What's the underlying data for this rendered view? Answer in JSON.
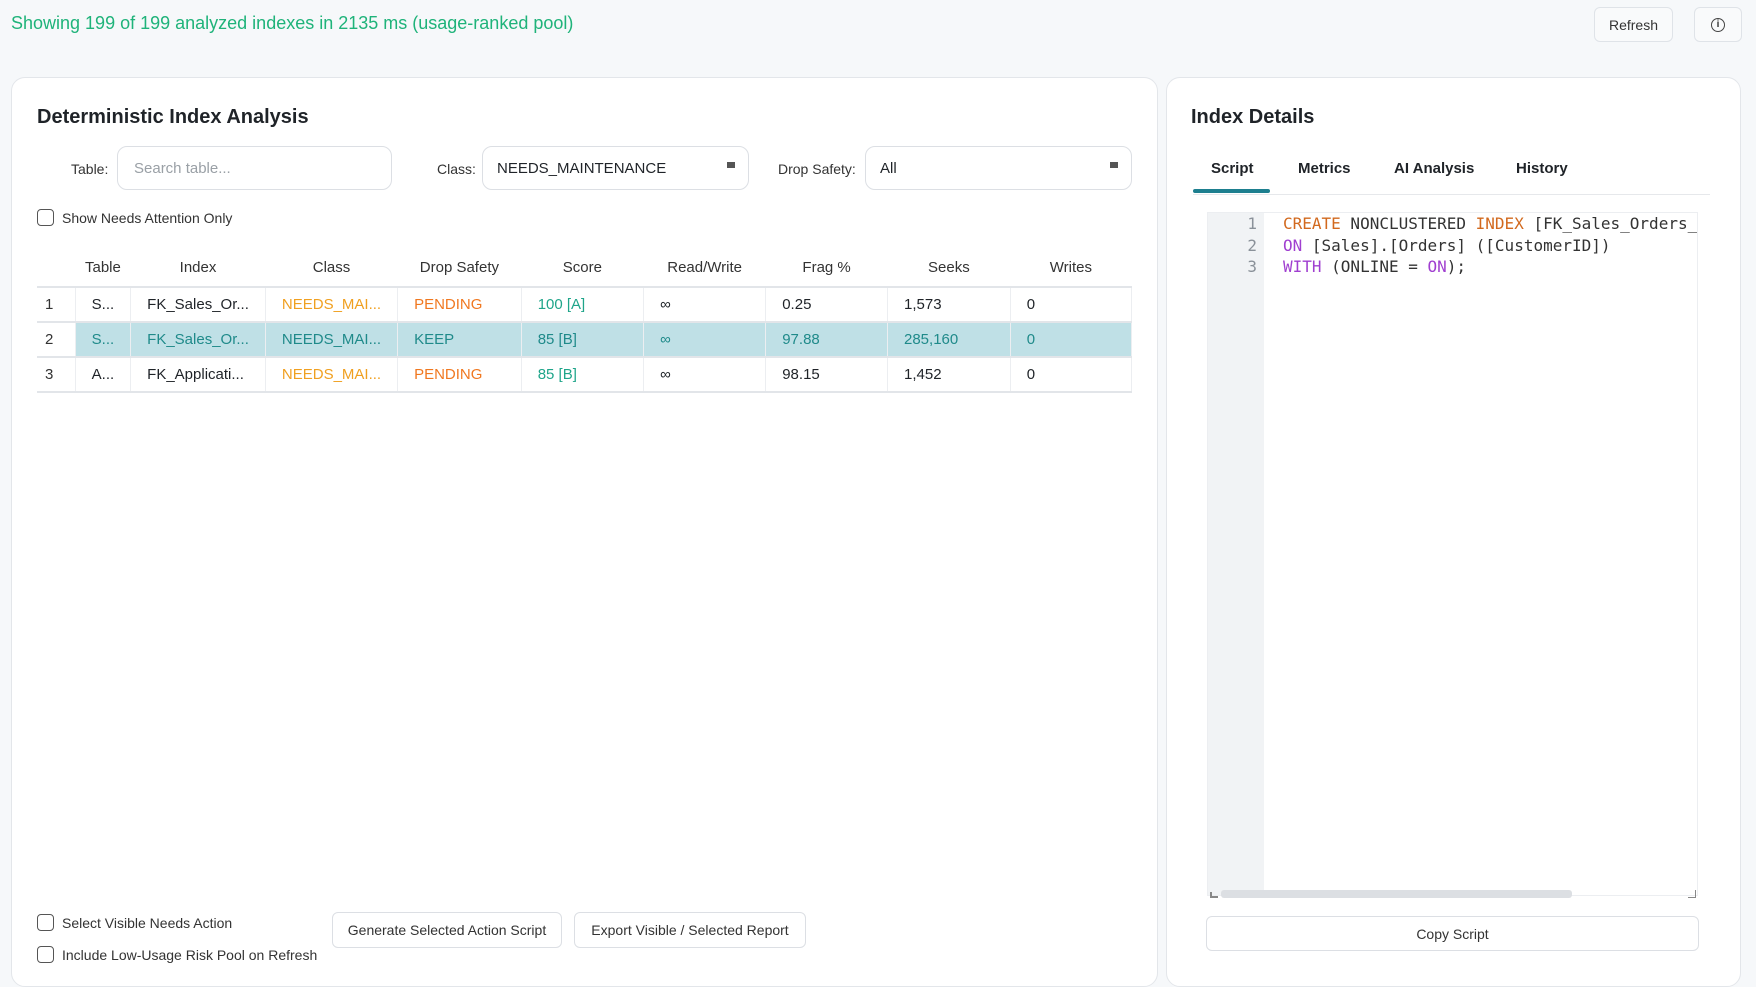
{
  "header": {
    "status": "Showing 199 of 199 analyzed indexes in 2135 ms (usage-ranked pool)",
    "refresh_label": "Refresh"
  },
  "left_panel": {
    "title": "Deterministic Index Analysis",
    "filters": {
      "table_label": "Table:",
      "table_placeholder": "Search table...",
      "class_label": "Class:",
      "class_value": "NEEDS_MAINTENANCE",
      "drop_safety_label": "Drop Safety:",
      "drop_safety_value": "All"
    },
    "show_needs_attention": "Show Needs Attention Only",
    "columns": [
      "Table",
      "Index",
      "Class",
      "Drop Safety",
      "Score",
      "Read/Write",
      "Frag %",
      "Seeks",
      "Writes"
    ],
    "rows": [
      {
        "num": "1",
        "table": "S...",
        "index": "FK_Sales_Or...",
        "class": "NEEDS_MAI...",
        "drop_safety": "PENDING",
        "score": "100 [A]",
        "rw": "∞",
        "frag": "0.25",
        "seeks": "1,573",
        "writes": "0"
      },
      {
        "num": "2",
        "table": "S...",
        "index": "FK_Sales_Or...",
        "class": "NEEDS_MAI...",
        "drop_safety": "KEEP",
        "score": "85 [B]",
        "rw": "∞",
        "frag": "97.88",
        "seeks": "285,160",
        "writes": "0"
      },
      {
        "num": "3",
        "table": "A...",
        "index": "FK_Applicati...",
        "class": "NEEDS_MAI...",
        "drop_safety": "PENDING",
        "score": "85 [B]",
        "rw": "∞",
        "frag": "98.15",
        "seeks": "1,452",
        "writes": "0"
      }
    ],
    "select_visible": "Select Visible Needs Action",
    "include_low_usage": "Include Low-Usage Risk Pool on Refresh",
    "generate_button": "Generate Selected Action Script",
    "export_button": "Export Visible / Selected Report"
  },
  "right_panel": {
    "title": "Index Details",
    "tabs": [
      "Script",
      "Metrics",
      "AI Analysis",
      "History"
    ],
    "active_tab": "Script",
    "code": {
      "line_numbers": [
        "1",
        "2",
        "3"
      ],
      "l1_create": "CREATE",
      "l1_nonclustered": " NONCLUSTERED ",
      "l1_index": "INDEX",
      "l1_rest": " [FK_Sales_Orders_Custo",
      "l2_on": "ON",
      "l2_rest": " [Sales].[Orders] ([CustomerID])",
      "l3_with": "WITH",
      "l3_mid": " (ONLINE = ",
      "l3_on": "ON",
      "l3_end": ");"
    },
    "copy_button": "Copy Script"
  },
  "colors": {
    "status_green": "#1fb37a",
    "class_orange": "#f0a020",
    "pending_orange": "#f07820",
    "score_teal": "#1fa58a",
    "selected_row_bg": "#bfe0e6",
    "tab_underline": "#1d7f8f"
  },
  "icons": {
    "info": "info-circle-icon",
    "dropdown": "dropdown-marker-icon"
  }
}
